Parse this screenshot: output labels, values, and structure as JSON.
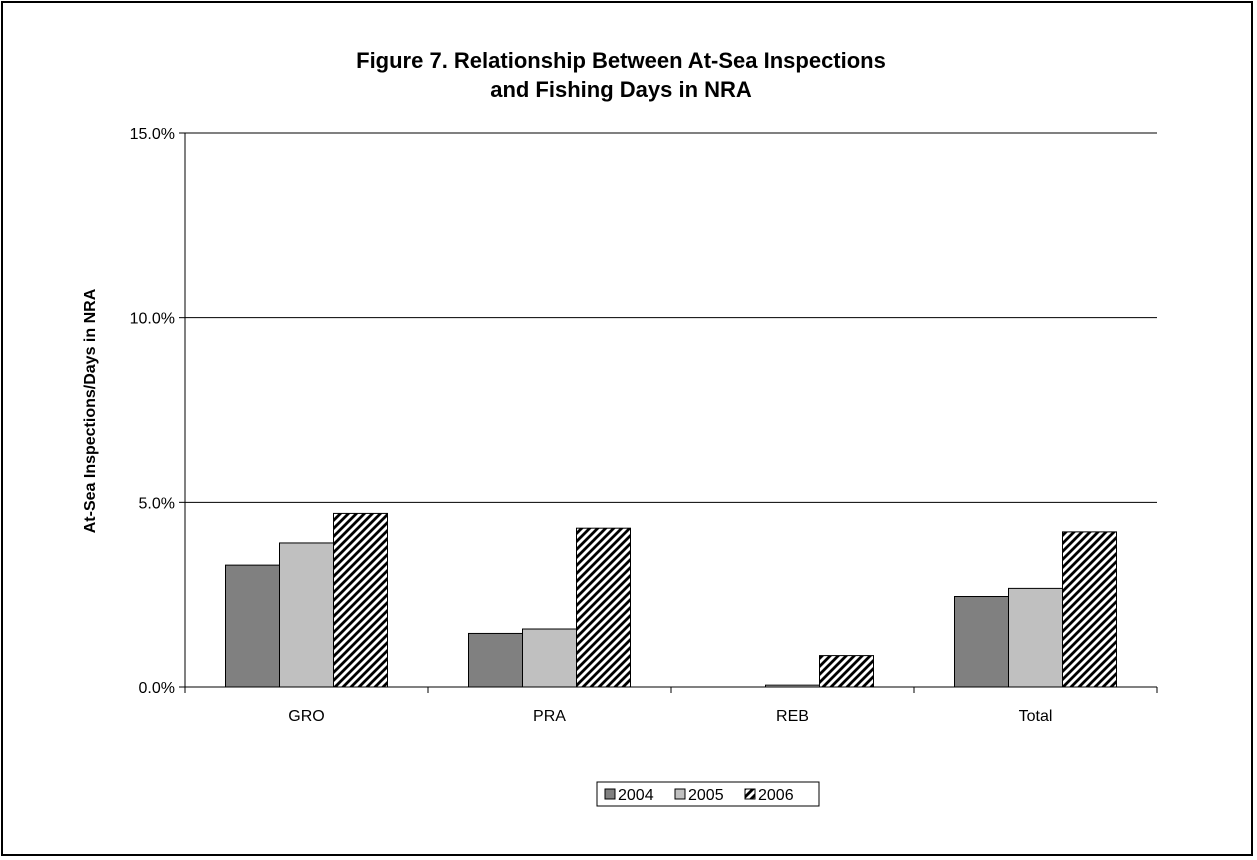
{
  "chart_data": {
    "type": "bar",
    "title": "Figure 7.  Relationship Between At-Sea Inspections",
    "subtitle": "and Fishing Days in NRA",
    "xlabel": "",
    "ylabel": "At-Sea Inspections/Days in NRA",
    "ylim": [
      0,
      0.15
    ],
    "yticks": [
      "0.0%",
      "5.0%",
      "10.0%",
      "15.0%"
    ],
    "ytick_values": [
      0,
      0.05,
      0.1,
      0.15
    ],
    "categories": [
      "GRO",
      "PRA",
      "REB",
      "Total"
    ],
    "series": [
      {
        "name": "2004",
        "values": [
          0.033,
          0.0145,
          0.0,
          0.0245
        ],
        "color": "#808080",
        "pattern": "solid"
      },
      {
        "name": "2005",
        "values": [
          0.039,
          0.0157,
          0.0005,
          0.0267
        ],
        "color": "#c0c0c0",
        "pattern": "solid"
      },
      {
        "name": "2006",
        "values": [
          0.047,
          0.043,
          0.0085,
          0.042
        ],
        "color": "#000000",
        "pattern": "diagonal-hatch"
      }
    ],
    "grid": true,
    "legend_position": "bottom"
  }
}
